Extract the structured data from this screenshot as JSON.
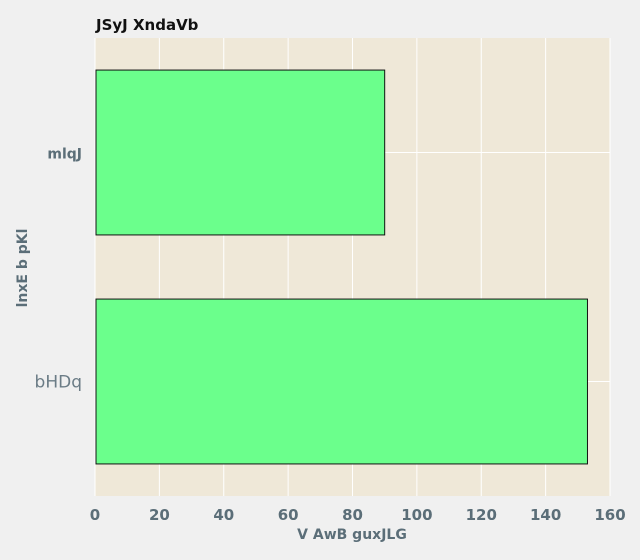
{
  "chart_data": {
    "type": "bar",
    "orientation": "horizontal",
    "title": "JSyJ XndaVb",
    "xlabel": "V AwB guxJLG",
    "ylabel": "lnxE b pKl",
    "categories": [
      "mlqJ",
      "bHDq"
    ],
    "values": [
      90,
      153
    ],
    "xlim": [
      0,
      160
    ],
    "xticks": [
      0,
      20,
      40,
      60,
      80,
      100,
      120,
      140,
      160
    ],
    "grid": true,
    "colors": {
      "bar": "#6bff8c",
      "bar_edge": "#111111",
      "plot_background": "#efe8d8",
      "page_background": "#f0f0f0",
      "grid": "#ffffff"
    }
  }
}
